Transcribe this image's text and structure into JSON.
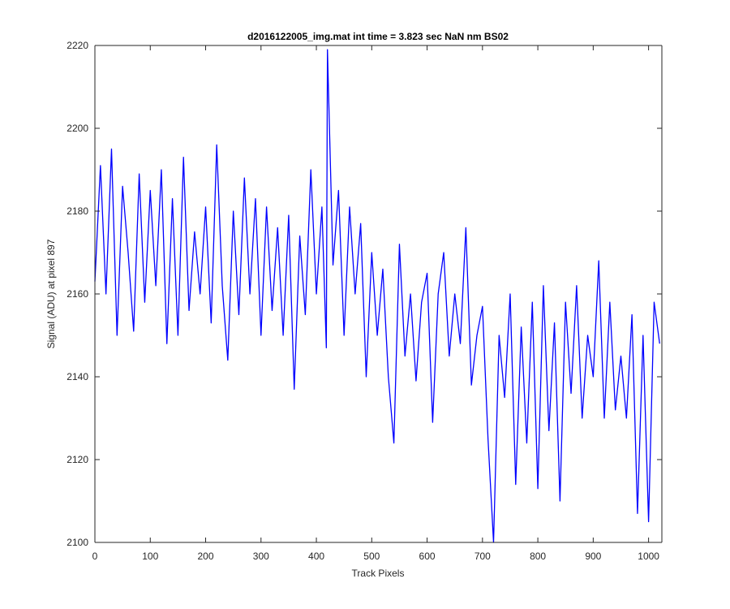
{
  "chart_data": {
    "type": "line",
    "title": "d2016122005_img.mat int time = 3.823 sec  NaN nm BS02",
    "xlabel": "Track Pixels",
    "ylabel": "Signal (ADU) at pixel 897",
    "xlim": [
      0,
      1024
    ],
    "ylim": [
      2100,
      2220
    ],
    "x_ticks": [
      0,
      100,
      200,
      300,
      400,
      500,
      600,
      700,
      800,
      900,
      1000
    ],
    "y_ticks": [
      2100,
      2120,
      2140,
      2160,
      2180,
      2200,
      2220
    ],
    "grid": false,
    "legend": "none",
    "series": [
      {
        "color": "#0000ff",
        "x": [
          0,
          10,
          20,
          30,
          40,
          50,
          60,
          70,
          80,
          90,
          100,
          110,
          120,
          130,
          140,
          150,
          160,
          170,
          180,
          190,
          200,
          210,
          220,
          230,
          240,
          250,
          260,
          270,
          280,
          290,
          300,
          310,
          320,
          330,
          340,
          350,
          360,
          370,
          380,
          390,
          400,
          410,
          418,
          420,
          430,
          440,
          450,
          460,
          470,
          480,
          490,
          500,
          510,
          520,
          530,
          540,
          550,
          560,
          570,
          580,
          590,
          600,
          610,
          620,
          630,
          640,
          650,
          660,
          670,
          680,
          690,
          700,
          710,
          720,
          730,
          740,
          750,
          760,
          770,
          780,
          790,
          800,
          810,
          820,
          830,
          840,
          850,
          860,
          870,
          880,
          890,
          900,
          910,
          920,
          930,
          940,
          950,
          960,
          970,
          980,
          990,
          1000,
          1010,
          1020
        ],
        "values": [
          2163,
          2191,
          2160,
          2195,
          2150,
          2186,
          2170,
          2151,
          2189,
          2158,
          2185,
          2162,
          2190,
          2148,
          2183,
          2150,
          2193,
          2156,
          2175,
          2160,
          2181,
          2153,
          2196,
          2162,
          2144,
          2180,
          2155,
          2188,
          2160,
          2183,
          2150,
          2181,
          2156,
          2176,
          2150,
          2179,
          2137,
          2174,
          2155,
          2190,
          2160,
          2181,
          2147,
          2219,
          2167,
          2185,
          2150,
          2181,
          2160,
          2177,
          2140,
          2170,
          2150,
          2166,
          2140,
          2124,
          2172,
          2145,
          2160,
          2139,
          2158,
          2165,
          2129,
          2160,
          2170,
          2145,
          2160,
          2148,
          2176,
          2138,
          2150,
          2157,
          2125,
          2100,
          2150,
          2135,
          2160,
          2114,
          2152,
          2124,
          2158,
          2113,
          2162,
          2127,
          2153,
          2110,
          2158,
          2136,
          2162,
          2130,
          2150,
          2140,
          2168,
          2130,
          2158,
          2132,
          2145,
          2130,
          2155,
          2107,
          2150,
          2105,
          2158,
          2148
        ]
      }
    ]
  }
}
